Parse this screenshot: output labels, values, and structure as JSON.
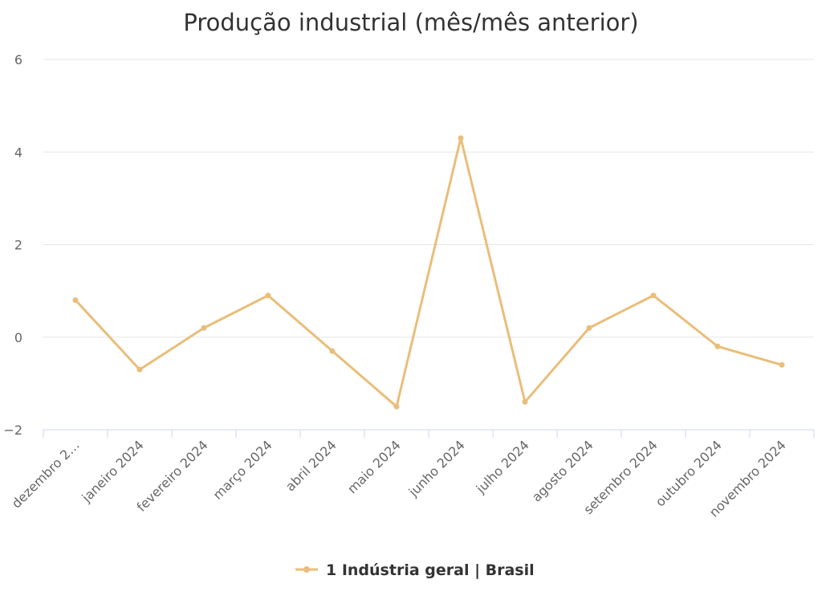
{
  "chart_data": {
    "type": "line",
    "title": "Produção industrial (mês/mês anterior)",
    "categories": [
      "dezembro 2…",
      "janeiro 2024",
      "fevereiro 2024",
      "março 2024",
      "abril 2024",
      "maio 2024",
      "junho 2024",
      "julho 2024",
      "agosto 2024",
      "setembro 2024",
      "outubro 2024",
      "novembro 2024"
    ],
    "series": [
      {
        "name": "1 Indústria geral | Brasil",
        "color": "#E9BE7A",
        "values": [
          0.8,
          -0.7,
          0.2,
          0.9,
          -0.3,
          -1.5,
          4.3,
          -1.4,
          0.2,
          0.9,
          -0.2,
          -0.6
        ]
      }
    ],
    "ylim": [
      -2,
      6
    ],
    "yticks": [
      -2,
      0,
      2,
      4,
      6
    ],
    "ytick_labels": [
      "−2",
      "0",
      "2",
      "4",
      "6"
    ],
    "grid": true,
    "legend": "bottom-center"
  }
}
